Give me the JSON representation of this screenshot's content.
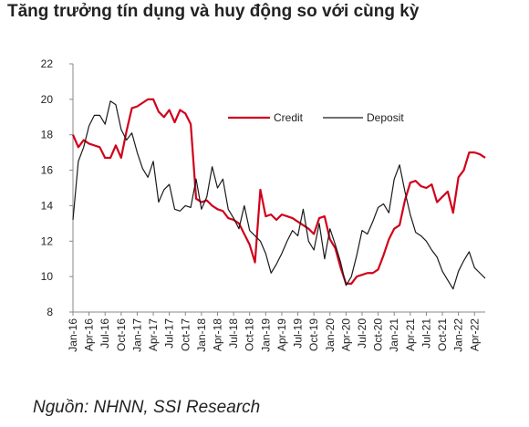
{
  "header": {
    "title": "Tăng trưởng tín dụng và huy động so với cùng kỳ"
  },
  "footer": {
    "source": "Nguồn: NHNN, SSI Research"
  },
  "chart_data": {
    "type": "line",
    "title": "Tăng trưởng tín dụng và huy động so với cùng kỳ",
    "xlabel": "",
    "ylabel": "",
    "ylim": [
      8,
      22
    ],
    "yticks": [
      8,
      10,
      12,
      14,
      16,
      18,
      20,
      22
    ],
    "x_tick_labels": [
      "Jan-16",
      "Apr-16",
      "Jul-16",
      "Oct-16",
      "Jan-17",
      "Apr-17",
      "Jul-17",
      "Oct-17",
      "Jan-18",
      "Apr-18",
      "Jul-18",
      "Oct-18",
      "Jan-19",
      "Apr-19",
      "Jul-19",
      "Oct-19",
      "Jan-20",
      "Apr-20",
      "Jul-20",
      "Oct-20",
      "Jan-21",
      "Apr-21",
      "Jul-21",
      "Oct-21",
      "Jan-22",
      "Apr-22"
    ],
    "grid": false,
    "legend_position": "top-right",
    "colors": {
      "Credit": "#d0021b",
      "Deposit": "#1a1a1a"
    },
    "series": [
      {
        "name": "Credit",
        "points": [
          [
            0,
            18.0
          ],
          [
            1,
            17.3
          ],
          [
            2,
            17.7
          ],
          [
            3,
            17.5
          ],
          [
            4,
            17.4
          ],
          [
            5,
            17.3
          ],
          [
            6,
            16.7
          ],
          [
            7,
            16.7
          ],
          [
            8,
            17.4
          ],
          [
            9,
            16.7
          ],
          [
            10,
            18.2
          ],
          [
            11,
            19.5
          ],
          [
            12,
            19.6
          ],
          [
            13,
            19.8
          ],
          [
            14,
            20.0
          ],
          [
            15,
            20.0
          ],
          [
            16,
            19.3
          ],
          [
            17,
            19.0
          ],
          [
            18,
            19.4
          ],
          [
            19,
            18.7
          ],
          [
            20,
            19.4
          ],
          [
            21,
            19.2
          ],
          [
            22,
            18.6
          ],
          [
            23,
            14.4
          ],
          [
            24,
            14.2
          ],
          [
            25,
            14.3
          ],
          [
            26,
            14.0
          ],
          [
            27,
            13.8
          ],
          [
            28,
            13.7
          ],
          [
            29,
            13.3
          ],
          [
            30,
            13.2
          ],
          [
            31,
            13.0
          ],
          [
            32,
            12.4
          ],
          [
            33,
            11.8
          ],
          [
            34,
            10.8
          ],
          [
            35,
            14.9
          ],
          [
            36,
            13.4
          ],
          [
            37,
            13.5
          ],
          [
            38,
            13.2
          ],
          [
            39,
            13.5
          ],
          [
            40,
            13.4
          ],
          [
            41,
            13.3
          ],
          [
            42,
            13.1
          ],
          [
            43,
            12.9
          ],
          [
            44,
            12.7
          ],
          [
            45,
            12.4
          ],
          [
            46,
            13.3
          ],
          [
            47,
            13.4
          ],
          [
            48,
            12.1
          ],
          [
            49,
            11.6
          ],
          [
            50,
            10.5
          ],
          [
            51,
            9.6
          ],
          [
            52,
            9.6
          ],
          [
            53,
            10.0
          ],
          [
            54,
            10.1
          ],
          [
            55,
            10.2
          ],
          [
            56,
            10.2
          ],
          [
            57,
            10.4
          ],
          [
            58,
            11.2
          ],
          [
            59,
            12.1
          ],
          [
            60,
            12.7
          ],
          [
            61,
            12.9
          ],
          [
            62,
            14.3
          ],
          [
            63,
            15.3
          ],
          [
            64,
            15.4
          ],
          [
            65,
            15.1
          ],
          [
            66,
            15.0
          ],
          [
            67,
            15.2
          ],
          [
            68,
            14.2
          ],
          [
            69,
            14.5
          ],
          [
            70,
            14.8
          ],
          [
            71,
            13.6
          ],
          [
            72,
            15.6
          ],
          [
            73,
            16.0
          ],
          [
            74,
            17.0
          ],
          [
            75,
            17.0
          ],
          [
            76,
            16.9
          ],
          [
            77,
            16.7
          ]
        ]
      },
      {
        "name": "Deposit",
        "points": [
          [
            0,
            13.2
          ],
          [
            1,
            16.5
          ],
          [
            2,
            17.3
          ],
          [
            3,
            18.5
          ],
          [
            4,
            19.1
          ],
          [
            5,
            19.1
          ],
          [
            6,
            18.6
          ],
          [
            7,
            19.9
          ],
          [
            8,
            19.7
          ],
          [
            9,
            18.3
          ],
          [
            10,
            17.7
          ],
          [
            11,
            18.1
          ],
          [
            12,
            17.0
          ],
          [
            13,
            16.1
          ],
          [
            14,
            15.6
          ],
          [
            15,
            16.5
          ],
          [
            16,
            14.2
          ],
          [
            17,
            14.9
          ],
          [
            18,
            15.2
          ],
          [
            19,
            13.8
          ],
          [
            20,
            13.7
          ],
          [
            21,
            14.0
          ],
          [
            22,
            13.9
          ],
          [
            23,
            15.5
          ],
          [
            24,
            13.8
          ],
          [
            25,
            14.5
          ],
          [
            26,
            16.2
          ],
          [
            27,
            15.0
          ],
          [
            28,
            15.5
          ],
          [
            29,
            13.8
          ],
          [
            30,
            13.3
          ],
          [
            31,
            12.7
          ],
          [
            32,
            14.0
          ],
          [
            33,
            12.6
          ],
          [
            34,
            12.3
          ],
          [
            35,
            12.0
          ],
          [
            36,
            11.3
          ],
          [
            37,
            10.2
          ],
          [
            38,
            10.7
          ],
          [
            39,
            11.3
          ],
          [
            40,
            12.0
          ],
          [
            41,
            12.6
          ],
          [
            42,
            12.3
          ],
          [
            43,
            13.8
          ],
          [
            44,
            12.0
          ],
          [
            45,
            11.5
          ],
          [
            46,
            13.0
          ],
          [
            47,
            11.0
          ],
          [
            48,
            12.7
          ],
          [
            49,
            11.8
          ],
          [
            50,
            10.8
          ],
          [
            51,
            9.5
          ],
          [
            52,
            10.0
          ],
          [
            53,
            11.2
          ],
          [
            54,
            12.6
          ],
          [
            55,
            12.4
          ],
          [
            56,
            13.1
          ],
          [
            57,
            13.9
          ],
          [
            58,
            14.1
          ],
          [
            59,
            13.6
          ],
          [
            60,
            15.5
          ],
          [
            61,
            16.3
          ],
          [
            62,
            14.8
          ],
          [
            63,
            13.5
          ],
          [
            64,
            12.5
          ],
          [
            65,
            12.3
          ],
          [
            66,
            12.0
          ],
          [
            67,
            11.5
          ],
          [
            68,
            11.1
          ],
          [
            69,
            10.3
          ],
          [
            70,
            9.8
          ],
          [
            71,
            9.3
          ],
          [
            72,
            10.3
          ],
          [
            73,
            10.9
          ],
          [
            74,
            11.4
          ],
          [
            75,
            10.5
          ],
          [
            76,
            10.2
          ],
          [
            77,
            9.9
          ]
        ]
      }
    ]
  }
}
